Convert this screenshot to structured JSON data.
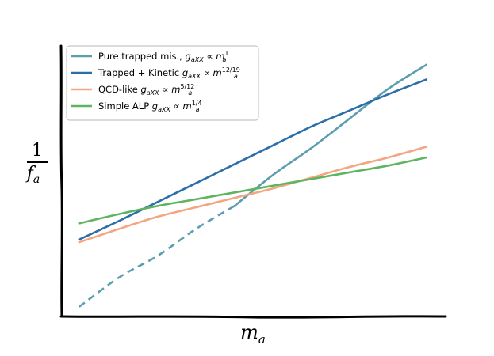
{
  "chart_data": {
    "type": "line",
    "style": "xkcd",
    "title": "",
    "xlabel": "m",
    "xlabel_sub": "a",
    "ylabel_num": "1",
    "ylabel_den": "f",
    "ylabel_den_sub": "a",
    "ticks": false,
    "grid": false,
    "legend_position": "top-left",
    "xlim": [
      0,
      10
    ],
    "ylim": [
      0,
      10
    ],
    "series": [
      {
        "name": "Pure trapped mis., g_aXX ∝ m_a^1",
        "legend_text": "Pure trapped mis.,",
        "legend_math": "g",
        "legend_math_sub": "aXX",
        "legend_prop": " ∝ ",
        "legend_m": "m",
        "legend_m_sub": "a",
        "legend_m_sup": "1",
        "color": "#5b9eb0",
        "dashed_until_x": 4.5,
        "x": [
          0.45,
          1.5,
          2.5,
          3.5,
          4.5,
          5.5,
          6.5,
          7.5,
          8.5,
          9.5
        ],
        "y": [
          0.3,
          1.4,
          2.2,
          3.2,
          4.05,
          5.2,
          6.2,
          7.3,
          8.4,
          9.3
        ]
      },
      {
        "name": "Trapped + Kinetic g_aXX ∝ m_a^12/19",
        "legend_text": "Trapped + Kinetic",
        "legend_math": "g",
        "legend_math_sub": "aXX",
        "legend_prop": " ∝ ",
        "legend_m": "m",
        "legend_m_sub": "a",
        "legend_m_sup": "12/19",
        "color": "#2b6ea8",
        "x": [
          0.45,
          1.5,
          2.5,
          3.5,
          4.5,
          5.5,
          6.5,
          7.5,
          8.5,
          9.5
        ],
        "y": [
          2.8,
          3.5,
          4.2,
          4.9,
          5.6,
          6.3,
          7.0,
          7.6,
          8.2,
          8.75
        ]
      },
      {
        "name": "QCD-like g_aXX ∝ m_a^5/12",
        "legend_text": "QCD-like",
        "legend_math": "g",
        "legend_math_sub": "aXX",
        "legend_prop": " ∝ ",
        "legend_m": "m",
        "legend_m_sub": "a",
        "legend_m_sup": "5/12",
        "color": "#f4a582",
        "x": [
          0.45,
          1.5,
          2.5,
          3.5,
          4.5,
          5.5,
          6.5,
          7.5,
          8.5,
          9.5
        ],
        "y": [
          2.7,
          3.2,
          3.65,
          4.0,
          4.35,
          4.7,
          5.1,
          5.5,
          5.85,
          6.25
        ]
      },
      {
        "name": "Simple ALP g_aXX ∝ m_a^1/4",
        "legend_text": "Simple ALP",
        "legend_math": "g",
        "legend_math_sub": "aXX",
        "legend_prop": " ∝ ",
        "legend_m": "m",
        "legend_m_sub": "a",
        "legend_m_sup": "1/4",
        "color": "#5fb55f",
        "x": [
          0.45,
          1.5,
          2.5,
          3.5,
          4.5,
          5.5,
          6.5,
          7.5,
          8.5,
          9.5
        ],
        "y": [
          3.4,
          3.75,
          4.05,
          4.3,
          4.55,
          4.8,
          5.05,
          5.3,
          5.55,
          5.85
        ]
      }
    ]
  }
}
